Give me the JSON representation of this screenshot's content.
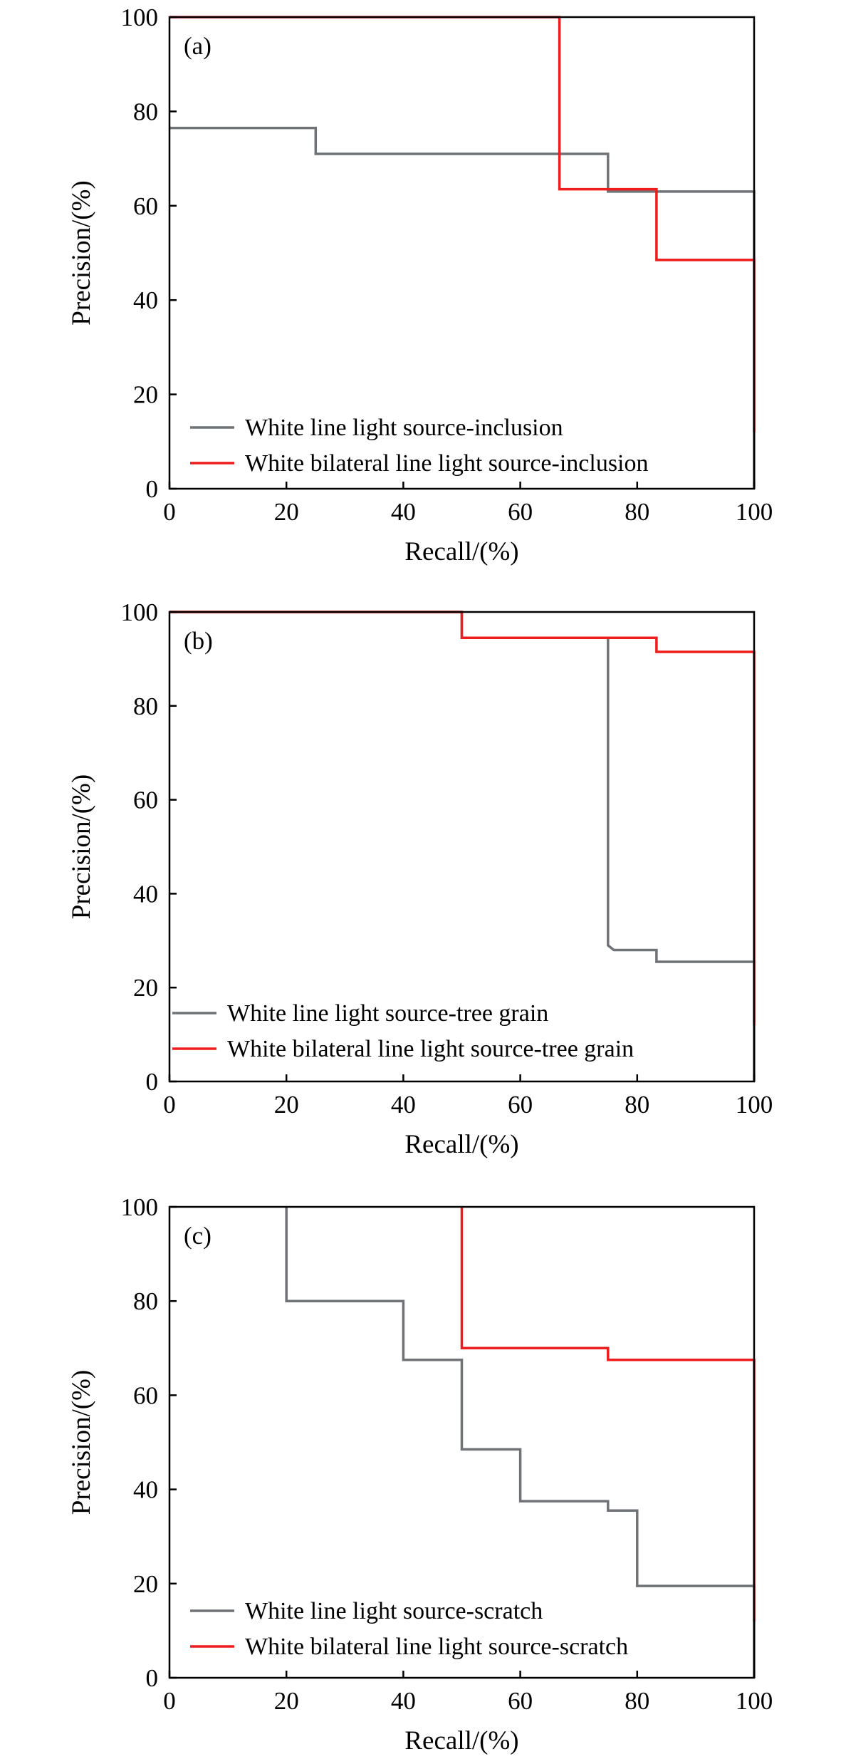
{
  "chart_data": [
    {
      "type": "line",
      "panel_label": "(a)",
      "xlabel": "Recall/(%)",
      "ylabel": "Precision/(%)",
      "xlim": [
        0,
        100
      ],
      "ylim": [
        0,
        100
      ],
      "xticks": [
        "0",
        "20",
        "40",
        "60",
        "80",
        "100"
      ],
      "yticks": [
        "0",
        "20",
        "40",
        "60",
        "80",
        "100"
      ],
      "grid": false,
      "legend_position": "lower-left",
      "series": [
        {
          "name": "White line light source-inclusion",
          "color": "#6f7277",
          "points": [
            [
              0,
              76.5
            ],
            [
              25,
              76.5
            ],
            [
              25,
              71
            ],
            [
              75,
              71
            ],
            [
              75,
              63
            ],
            [
              100,
              63
            ],
            [
              100,
              0
            ]
          ]
        },
        {
          "name": "White bilateral line light source-inclusion",
          "color": "#ee1c1c",
          "points": [
            [
              0,
              100
            ],
            [
              66.7,
              100
            ],
            [
              66.7,
              63.5
            ],
            [
              83.3,
              63.5
            ],
            [
              83.3,
              48.5
            ],
            [
              100,
              48.5
            ],
            [
              100,
              12
            ]
          ]
        }
      ]
    },
    {
      "type": "line",
      "panel_label": "(b)",
      "xlabel": "Recall/(%)",
      "ylabel": "Precision/(%)",
      "xlim": [
        0,
        100
      ],
      "ylim": [
        0,
        100
      ],
      "xticks": [
        "0",
        "20",
        "40",
        "60",
        "80",
        "100"
      ],
      "yticks": [
        "0",
        "20",
        "40",
        "60",
        "80",
        "100"
      ],
      "grid": false,
      "legend_position": "lower-left",
      "series": [
        {
          "name": "White line light source-tree grain",
          "color": "#6f7277",
          "points": [
            [
              0,
              100
            ],
            [
              50,
              100
            ],
            [
              50,
              94.5
            ],
            [
              75,
              94.5
            ],
            [
              75,
              29
            ],
            [
              76,
              28
            ],
            [
              83.3,
              28
            ],
            [
              83.3,
              25.5
            ],
            [
              100,
              25.5
            ],
            [
              100,
              0
            ]
          ]
        },
        {
          "name": "White bilateral line light source-tree grain",
          "color": "#ee1c1c",
          "points": [
            [
              0,
              100
            ],
            [
              50,
              100
            ],
            [
              50,
              94.5
            ],
            [
              83.3,
              94.5
            ],
            [
              83.3,
              91.5
            ],
            [
              100,
              91.5
            ],
            [
              100,
              12
            ]
          ]
        }
      ]
    },
    {
      "type": "line",
      "panel_label": "(c)",
      "xlabel": "Recall/(%)",
      "ylabel": "Precision/(%)",
      "xlim": [
        0,
        100
      ],
      "ylim": [
        0,
        100
      ],
      "xticks": [
        "0",
        "20",
        "40",
        "60",
        "80",
        "100"
      ],
      "yticks": [
        "0",
        "20",
        "40",
        "60",
        "80",
        "100"
      ],
      "grid": false,
      "legend_position": "lower-left",
      "series": [
        {
          "name": "White line light source-scratch",
          "color": "#6f7277",
          "points": [
            [
              20,
              100
            ],
            [
              20,
              80
            ],
            [
              40,
              80
            ],
            [
              40,
              67.5
            ],
            [
              50,
              67.5
            ],
            [
              50,
              48.5
            ],
            [
              60,
              48.5
            ],
            [
              60,
              37.5
            ],
            [
              75,
              37.5
            ],
            [
              75,
              35.5
            ],
            [
              80,
              35.5
            ],
            [
              80,
              19.5
            ],
            [
              100,
              19.5
            ],
            [
              100,
              0
            ]
          ]
        },
        {
          "name": "White bilateral line light source-scratch",
          "color": "#ee1c1c",
          "points": [
            [
              50,
              100
            ],
            [
              50,
              70
            ],
            [
              75,
              70
            ],
            [
              75,
              67.5
            ],
            [
              100,
              67.5
            ],
            [
              100,
              12
            ]
          ]
        }
      ]
    }
  ]
}
